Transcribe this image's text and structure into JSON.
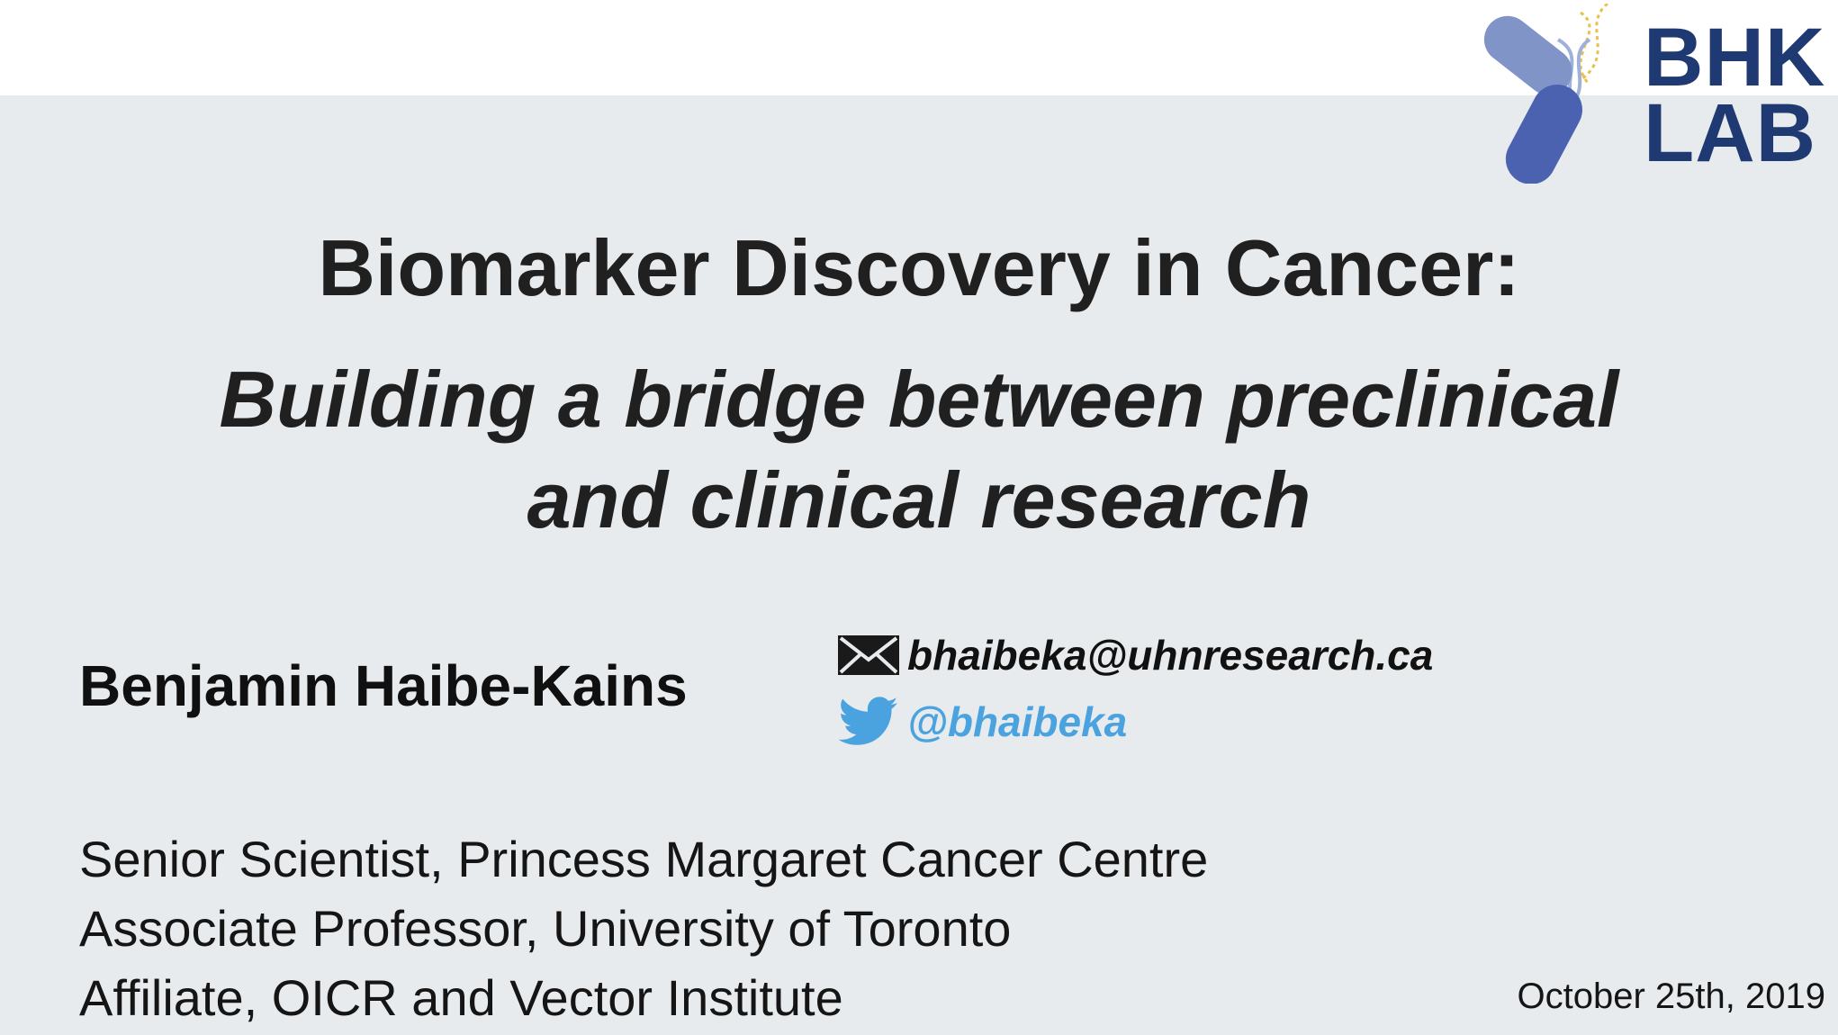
{
  "logo": {
    "line1": "BHK",
    "line2": "LAB",
    "colors": {
      "text": "#1f3a72",
      "pill": "#4a62b0",
      "dna": "#e8c04a"
    }
  },
  "title": "Biomarker Discovery in Cancer:",
  "subtitle": {
    "line1": "Building a bridge between preclinical",
    "line2": "and clinical research"
  },
  "author": {
    "name": "Benjamin Haibe-Kains"
  },
  "contact": {
    "email": {
      "icon": "envelope-icon",
      "text": "bhaibeka@uhnresearch.ca"
    },
    "twitter": {
      "icon": "twitter-bird-icon",
      "text": "@bhaibeka",
      "color": "#4aa3df"
    }
  },
  "affiliations": [
    "Senior Scientist, Princess Margaret Cancer Centre",
    "Associate Professor, University of Toronto",
    "Affiliate, OICR and Vector Institute"
  ],
  "date": "October 25th, 2019"
}
